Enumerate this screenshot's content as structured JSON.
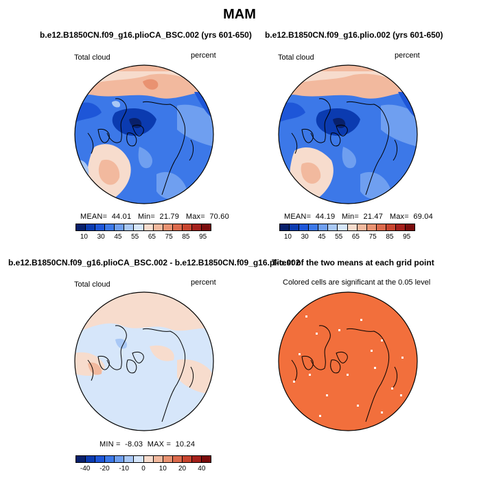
{
  "title": "MAM",
  "panels": [
    {
      "title": "b.e12.B1850CN.f09_g16.plioCA_BSC.002 (yrs 601-650)",
      "left_label": "Total cloud",
      "right_label": "percent",
      "stats": {
        "mean_label": "MEAN=",
        "mean": "44.01",
        "min_label": "Min=",
        "min": "21.79",
        "max_label": "Max=",
        "max": "70.60"
      },
      "colorbar_ticks": [
        "10",
        "30",
        "45",
        "55",
        "65",
        "75",
        "85",
        "95"
      ]
    },
    {
      "title": "b.e12.B1850CN.f09_g16.plio.002 (yrs 601-650)",
      "left_label": "Total cloud",
      "right_label": "percent",
      "stats": {
        "mean_label": "MEAN=",
        "mean": "44.19",
        "min_label": "Min=",
        "min": "21.47",
        "max_label": "Max=",
        "max": "69.04"
      },
      "colorbar_ticks": [
        "10",
        "30",
        "45",
        "55",
        "65",
        "75",
        "85",
        "95"
      ]
    },
    {
      "title": "b.e12.B1850CN.f09_g16.plioCA_BSC.002 - b.e12.B1850CN.f09_g16.plio.002",
      "left_label": "Total cloud",
      "right_label": "percent",
      "stats": {
        "min_label": "MIN =",
        "min": "-8.03",
        "max_label": "MAX =",
        "max": "10.24"
      },
      "colorbar_ticks": [
        "-40",
        "-20",
        "-10",
        "0",
        "10",
        "20",
        "40"
      ]
    },
    {
      "title": "T-test of the two means at each grid point",
      "subtitle": "Colored cells are significant at the 0.05 level"
    }
  ],
  "colors": {
    "abs_scale": [
      "#08206b",
      "#0b3bb0",
      "#1e56d8",
      "#3c78e8",
      "#6f9ff0",
      "#a9c8f5",
      "#d6e6fa",
      "#f7dccd",
      "#f2b99e",
      "#e99271",
      "#dc6a4c",
      "#c8452f",
      "#a4201b",
      "#7a0c0c"
    ],
    "diff_scale": [
      "#08206b",
      "#0b3bb0",
      "#1e56d8",
      "#3c78e8",
      "#6f9ff0",
      "#a9c8f5",
      "#d6e6fa",
      "#f7dccd",
      "#f2b99e",
      "#e99271",
      "#dc6a4c",
      "#c8452f",
      "#a4201b",
      "#7a0c0c"
    ],
    "ttest": "#f26f3c"
  }
}
